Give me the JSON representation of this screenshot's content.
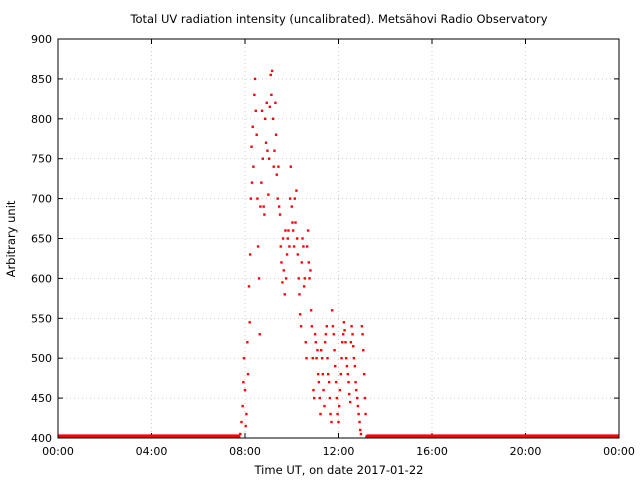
{
  "chart_data": {
    "type": "scatter",
    "title": "Total UV radiation intensity (uncalibrated). Metsähovi Radio Observatory",
    "xlabel": "Time UT, on date 2017-01-22",
    "ylabel": "Arbitrary unit",
    "xlim": [
      0,
      24
    ],
    "ylim": [
      400,
      900
    ],
    "xticks": [
      0,
      4,
      8,
      12,
      16,
      20,
      24
    ],
    "xtick_labels": [
      "00:00",
      "04:00",
      "08:00",
      "12:00",
      "16:00",
      "20:00",
      "00:00"
    ],
    "yticks": [
      400,
      450,
      500,
      550,
      600,
      650,
      700,
      750,
      800,
      850,
      900
    ],
    "ytick_labels": [
      "400",
      "450",
      "500",
      "550",
      "600",
      "650",
      "700",
      "750",
      "800",
      "850",
      "900"
    ],
    "grid": true,
    "marker_color": "#ff0000",
    "series": [
      {
        "baseline": {
          "value": 402,
          "x_ranges": [
            [
              0,
              7.8
            ],
            [
              13.2,
              24
            ]
          ]
        },
        "x": [
          7.8,
          7.85,
          7.9,
          7.93,
          7.96,
          8.0,
          8.03,
          8.06,
          8.1,
          8.13,
          8.17,
          8.2,
          8.22,
          8.25,
          8.28,
          8.3,
          8.33,
          8.36,
          8.4,
          8.43,
          8.46,
          8.5,
          8.53,
          8.56,
          8.6,
          8.63,
          8.66,
          8.7,
          8.73,
          8.76,
          8.8,
          8.83,
          8.86,
          8.9,
          8.93,
          8.96,
          9.0,
          9.03,
          9.06,
          9.1,
          9.13,
          9.16,
          9.2,
          9.23,
          9.26,
          9.3,
          9.33,
          9.36,
          9.4,
          9.43,
          9.46,
          9.5,
          9.53,
          9.56,
          9.6,
          9.63,
          9.66,
          9.7,
          9.73,
          9.76,
          9.8,
          9.83,
          9.86,
          9.9,
          9.93,
          9.96,
          10.0,
          10.03,
          10.06,
          10.1,
          10.13,
          10.16,
          10.2,
          10.23,
          10.26,
          10.3,
          10.33,
          10.36,
          10.4,
          10.43,
          10.46,
          10.5,
          10.53,
          10.56,
          10.6,
          10.63,
          10.66,
          10.7,
          10.73,
          10.76,
          10.8,
          10.83,
          10.86,
          10.9,
          10.93,
          10.96,
          11.0,
          11.03,
          11.06,
          11.1,
          11.13,
          11.16,
          11.2,
          11.23,
          11.26,
          11.3,
          11.33,
          11.36,
          11.4,
          11.43,
          11.46,
          11.5,
          11.53,
          11.56,
          11.6,
          11.63,
          11.66,
          11.7,
          11.73,
          11.76,
          11.8,
          11.83,
          11.86,
          11.9,
          11.93,
          11.96,
          12.0,
          12.03,
          12.06,
          12.1,
          12.13,
          12.16,
          12.2,
          12.23,
          12.26,
          12.3,
          12.33,
          12.36,
          12.4,
          12.43,
          12.46,
          12.5,
          12.53,
          12.56,
          12.6,
          12.63,
          12.66,
          12.7,
          12.73,
          12.76,
          12.8,
          12.83,
          12.86,
          12.9,
          12.93,
          12.96,
          13.0,
          13.03,
          13.06,
          13.1,
          13.13,
          13.16,
          13.2
        ],
        "y": [
          405,
          420,
          440,
          470,
          500,
          460,
          415,
          430,
          520,
          480,
          590,
          545,
          630,
          700,
          765,
          720,
          790,
          740,
          830,
          850,
          810,
          780,
          700,
          640,
          600,
          530,
          690,
          720,
          810,
          750,
          690,
          680,
          800,
          770,
          820,
          760,
          705,
          750,
          815,
          855,
          830,
          860,
          800,
          740,
          760,
          820,
          780,
          730,
          700,
          740,
          690,
          680,
          640,
          620,
          595,
          650,
          610,
          580,
          660,
          600,
          630,
          650,
          660,
          640,
          700,
          740,
          690,
          670,
          660,
          640,
          700,
          670,
          710,
          650,
          630,
          600,
          580,
          555,
          540,
          620,
          650,
          640,
          590,
          600,
          520,
          500,
          640,
          660,
          620,
          600,
          610,
          560,
          540,
          500,
          460,
          450,
          530,
          520,
          500,
          510,
          480,
          470,
          450,
          430,
          510,
          500,
          480,
          460,
          440,
          520,
          530,
          540,
          500,
          480,
          470,
          450,
          430,
          420,
          560,
          540,
          530,
          510,
          490,
          470,
          450,
          430,
          420,
          440,
          460,
          480,
          500,
          520,
          530,
          545,
          535,
          520,
          500,
          490,
          480,
          470,
          455,
          445,
          520,
          540,
          530,
          515,
          500,
          490,
          470,
          460,
          450,
          440,
          430,
          420,
          410,
          405,
          540,
          530,
          510,
          480,
          450,
          430,
          402
        ]
      }
    ]
  }
}
